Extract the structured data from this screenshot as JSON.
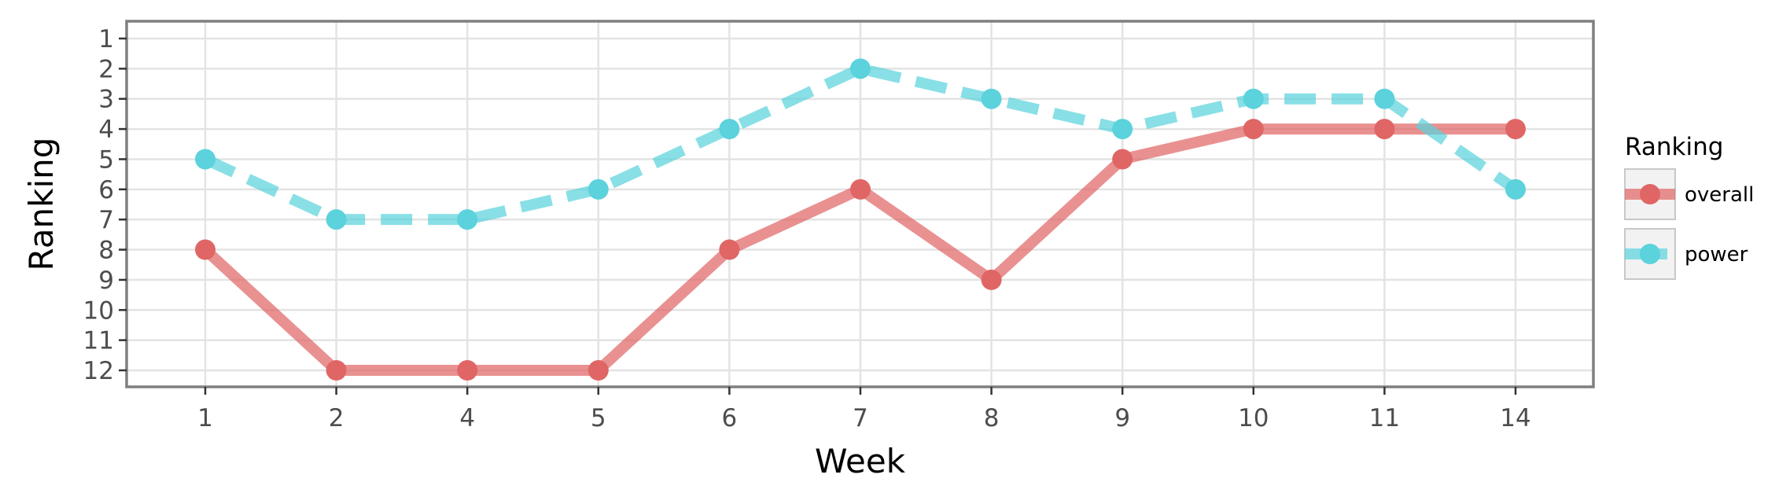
{
  "chart_data": {
    "type": "line",
    "xlabel": "Week",
    "ylabel": "Ranking",
    "categories": [
      "1",
      "2",
      "4",
      "5",
      "6",
      "7",
      "8",
      "9",
      "10",
      "11",
      "14"
    ],
    "y_ticks": [
      "1",
      "2",
      "3",
      "4",
      "5",
      "6",
      "7",
      "8",
      "9",
      "10",
      "11",
      "12"
    ],
    "ylim": [
      1,
      12
    ],
    "y_reversed": true,
    "grid": true,
    "legend": {
      "title": "Ranking",
      "position": "right"
    },
    "series": [
      {
        "name": "overall",
        "color": "#e06666",
        "line_style": "solid",
        "values": [
          8,
          12,
          12,
          12,
          8,
          6,
          9,
          5,
          4,
          4,
          4
        ]
      },
      {
        "name": "power",
        "color": "#5bd2dc",
        "line_style": "dashed",
        "values": [
          5,
          7,
          7,
          6,
          4,
          2,
          3,
          4,
          3,
          3,
          6
        ]
      }
    ]
  }
}
